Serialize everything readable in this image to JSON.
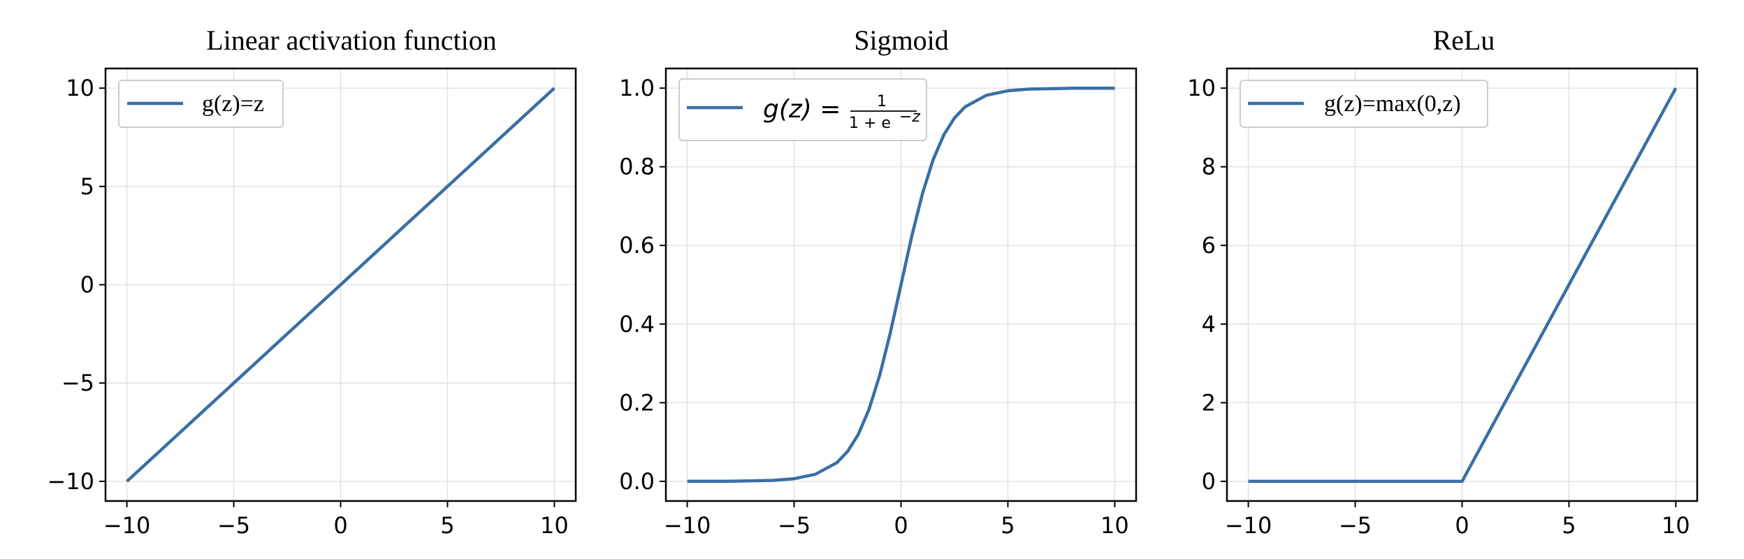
{
  "chart_data": [
    {
      "type": "line",
      "title": "Linear activation function",
      "xlim": [
        -11,
        11
      ],
      "ylim": [
        -11,
        11
      ],
      "xticks": [
        -10,
        -5,
        0,
        5,
        10
      ],
      "yticks": [
        -10,
        -5,
        0,
        5,
        10
      ],
      "x_tick_labels": [
        "−10",
        "−5",
        "0",
        "5",
        "10"
      ],
      "y_tick_labels": [
        "−10",
        "−5",
        "0",
        "5",
        "10"
      ],
      "grid": true,
      "legend_position": "top-left",
      "series": [
        {
          "name": "g(z)=z",
          "color": "#3a6ea5",
          "x": [
            -10,
            10
          ],
          "y": [
            -10,
            10
          ]
        }
      ]
    },
    {
      "type": "line",
      "title": "Sigmoid",
      "xlim": [
        -11,
        11
      ],
      "ylim": [
        -0.05,
        1.05
      ],
      "xticks": [
        -10,
        -5,
        0,
        5,
        10
      ],
      "yticks": [
        0.0,
        0.2,
        0.4,
        0.6,
        0.8,
        1.0
      ],
      "x_tick_labels": [
        "−10",
        "−5",
        "0",
        "5",
        "10"
      ],
      "y_tick_labels": [
        "0.0",
        "0.2",
        "0.4",
        "0.6",
        "0.8",
        "1.0"
      ],
      "grid": true,
      "legend_position": "top-left",
      "series": [
        {
          "name": "g(z) = 1/(1+e^−z)",
          "color": "#3a6ea5",
          "x": [
            -10,
            -8,
            -6,
            -5,
            -4,
            -3,
            -2.5,
            -2,
            -1.5,
            -1,
            -0.5,
            0,
            0.5,
            1,
            1.5,
            2,
            2.5,
            3,
            4,
            5,
            6,
            8,
            10
          ],
          "y": [
            4.54e-05,
            0.000335,
            0.00247,
            0.00669,
            0.018,
            0.0474,
            0.0759,
            0.1192,
            0.1824,
            0.2689,
            0.3775,
            0.5,
            0.6225,
            0.7311,
            0.8176,
            0.8808,
            0.9241,
            0.9526,
            0.982,
            0.9933,
            0.9975,
            0.99966,
            0.99995
          ]
        }
      ]
    },
    {
      "type": "line",
      "title": "ReLu",
      "xlim": [
        -11,
        11
      ],
      "ylim": [
        -0.5,
        10.5
      ],
      "xticks": [
        -10,
        -5,
        0,
        5,
        10
      ],
      "yticks": [
        0,
        2,
        4,
        6,
        8,
        10
      ],
      "x_tick_labels": [
        "−10",
        "−5",
        "0",
        "5",
        "10"
      ],
      "y_tick_labels": [
        "0",
        "2",
        "4",
        "6",
        "8",
        "10"
      ],
      "grid": true,
      "legend_position": "top-left",
      "series": [
        {
          "name": "g(z)=max(0,z)",
          "color": "#3a6ea5",
          "x": [
            -10,
            0,
            10
          ],
          "y": [
            0,
            0,
            10
          ]
        }
      ]
    }
  ],
  "legend": {
    "linear_label": "g(z)=z",
    "sigmoid_lhs": "g(z) =",
    "sigmoid_num": "1",
    "sigmoid_den": "1 + e",
    "sigmoid_exp": "−z",
    "relu_label": "g(z)=max(0,z)"
  }
}
